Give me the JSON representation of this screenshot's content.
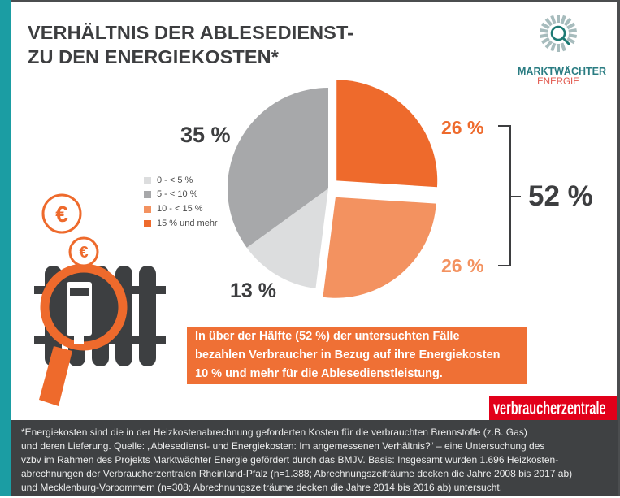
{
  "title": {
    "line1": "VERHÄLTNIS DER ABLESEDIENST-",
    "line2": "ZU DEN ENERGIEKOSTEN*"
  },
  "logo": {
    "icon": "magnifier-sunburst-icon",
    "name": "MARKTWÄCHTER",
    "sub": "ENERGIE"
  },
  "colors": {
    "teal": "#1b9da3",
    "orange": "#ee6a2c",
    "light_orange": "#f39260",
    "light_gray": "#dcddde",
    "mid_gray": "#a7a8aa",
    "dark_text": "#3d3e40",
    "brand_red": "#e2001a",
    "footer_bg": "#3f4143"
  },
  "illustration": {
    "icons": [
      "euro-coin-icon",
      "radiator-icon",
      "magnifier-icon",
      "heat-meter-icon"
    ],
    "euro_symbol": "€"
  },
  "chart_data": {
    "type": "pie",
    "title": "Verhältnis der Ablesedienst- zu den Energiekosten*",
    "slices": [
      {
        "label": "15 % und mehr",
        "value": 26,
        "data_label": "26 %",
        "color": "#ee6a2c",
        "exploded": true
      },
      {
        "label": "10 - < 15 %",
        "value": 26,
        "data_label": "26 %",
        "color": "#f39260",
        "exploded": true
      },
      {
        "label": "0 - < 5 %",
        "value": 13,
        "data_label": "13 %",
        "color": "#dcddde",
        "exploded": false
      },
      {
        "label": "5 - < 10 %",
        "value": 35,
        "data_label": "35 %",
        "color": "#a7a8aa",
        "exploded": false
      }
    ],
    "legend": [
      {
        "label": "0 - < 5 %",
        "color": "#dcddde"
      },
      {
        "label": "5 - < 10 %",
        "color": "#a7a8aa"
      },
      {
        "label": "10 - < 15 %",
        "color": "#f39260"
      },
      {
        "label": "15 % und mehr",
        "color": "#ee6a2c"
      }
    ],
    "legend_position": "left",
    "start_angle": "top, clockwise",
    "annotations": {
      "bracket_label": "52 %",
      "bracket_covers": [
        "15 % und mehr",
        "10 - < 15 %"
      ]
    }
  },
  "callout": {
    "lines": [
      "In über der Hälfte (52 %) der untersuchten Fälle",
      "bezahlen Verbraucher in Bezug auf ihre Energiekosten",
      "10 % und mehr für die Ablesedienstleistung."
    ]
  },
  "brand": "verbraucherzentrale",
  "footnote": {
    "lines": [
      "*Energiekosten sind die in der Heizkostenabrechnung geforderten Kosten für die verbrauchten Brennstoffe (z.B. Gas)",
      "und deren Lieferung. Quelle: „Ablesedienst- und Energiekosten: Im angemessenen Verhältnis?“ –  eine Untersuchung des",
      "vzbv im Rahmen des Projekts Marktwächter Energie gefördert durch das BMJV. Basis: Insgesamt wurden 1.696 Heizkosten-",
      "abrechnungen der Verbraucherzentralen Rheinland-Pfalz (n=1.388; Abrechnungszeiträume decken die Jahre 2008 bis 2017 ab)",
      "und Mecklenburg-Vorpommern (n=308; Abrechnungszeiträume decken die Jahre 2014 bis 2016 ab) untersucht."
    ]
  }
}
